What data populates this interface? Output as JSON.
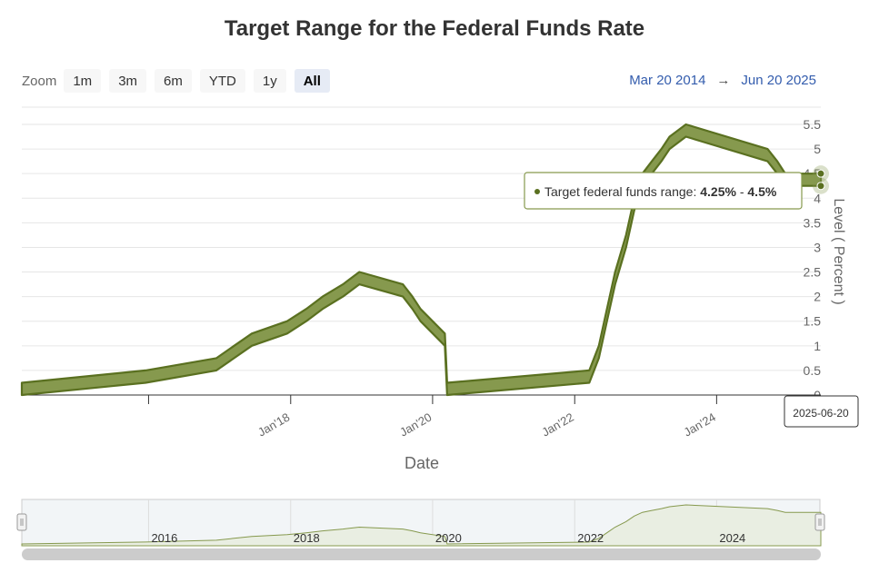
{
  "title": "Target Range for the Federal Funds Rate",
  "zoom": {
    "label": "Zoom",
    "buttons": [
      {
        "label": "1m",
        "active": false
      },
      {
        "label": "3m",
        "active": false
      },
      {
        "label": "6m",
        "active": false
      },
      {
        "label": "YTD",
        "active": false
      },
      {
        "label": "1y",
        "active": false
      },
      {
        "label": "All",
        "active": true
      }
    ]
  },
  "range": {
    "from": "Mar 20 2014",
    "arrow": "→",
    "to": "Jun 20 2025"
  },
  "tooltip": {
    "label": "Target federal funds range: ",
    "low": "4.25%",
    "sep": " - ",
    "high": "4.5%"
  },
  "x_tooltip": "2025-06-20",
  "navigator": {
    "labels": [
      {
        "text": "2016",
        "date": "2016-01-01"
      },
      {
        "text": "2018",
        "date": "2018-01-01"
      },
      {
        "text": "2020",
        "date": "2020-01-01"
      },
      {
        "text": "2022",
        "date": "2022-01-01"
      },
      {
        "text": "2024",
        "date": "2024-01-01"
      }
    ]
  },
  "colors": {
    "series_fill": "#86994e",
    "series_line": "#5a7020",
    "link": "#335cad"
  },
  "chart_data": {
    "type": "area",
    "subtype": "arearange",
    "title": "Target Range for the Federal Funds Rate",
    "xlabel": "Date",
    "ylabel": "Level ( Percent )",
    "x_range": [
      "2014-03-20",
      "2025-06-20"
    ],
    "ylim": [
      0,
      5.5
    ],
    "yticks": [
      "0",
      "0.5",
      "1",
      "1.5",
      "2",
      "2.5",
      "3",
      "3.5",
      "4",
      "4.5",
      "5",
      "5.5"
    ],
    "yaxis_position": "right",
    "xticks": [
      {
        "label": "Jan'18",
        "date": "2018-01-01"
      },
      {
        "label": "Jan'20",
        "date": "2020-01-01"
      },
      {
        "label": "Jan'22",
        "date": "2022-01-01"
      },
      {
        "label": "Jan'24",
        "date": "2024-01-01"
      }
    ],
    "minor_xticks": [
      "2016-01-01"
    ],
    "grid": true,
    "series": [
      {
        "name": "Target federal funds range",
        "points": [
          {
            "date": "2014-03-20",
            "low": 0,
            "high": 0.25
          },
          {
            "date": "2015-12-17",
            "low": 0.25,
            "high": 0.5
          },
          {
            "date": "2016-12-15",
            "low": 0.5,
            "high": 0.75
          },
          {
            "date": "2017-03-16",
            "low": 0.75,
            "high": 1.0
          },
          {
            "date": "2017-06-15",
            "low": 1.0,
            "high": 1.25
          },
          {
            "date": "2017-12-14",
            "low": 1.25,
            "high": 1.5
          },
          {
            "date": "2018-03-22",
            "low": 1.5,
            "high": 1.75
          },
          {
            "date": "2018-06-14",
            "low": 1.75,
            "high": 2.0
          },
          {
            "date": "2018-09-27",
            "low": 2.0,
            "high": 2.25
          },
          {
            "date": "2018-12-20",
            "low": 2.25,
            "high": 2.5
          },
          {
            "date": "2019-08-01",
            "low": 2.0,
            "high": 2.25
          },
          {
            "date": "2019-09-19",
            "low": 1.75,
            "high": 2.0
          },
          {
            "date": "2019-10-31",
            "low": 1.5,
            "high": 1.75
          },
          {
            "date": "2020-03-04",
            "low": 1.0,
            "high": 1.25
          },
          {
            "date": "2020-03-16",
            "low": 0,
            "high": 0.25
          },
          {
            "date": "2022-03-17",
            "low": 0.25,
            "high": 0.5
          },
          {
            "date": "2022-05-05",
            "low": 0.75,
            "high": 1.0
          },
          {
            "date": "2022-06-16",
            "low": 1.5,
            "high": 1.75
          },
          {
            "date": "2022-07-28",
            "low": 2.25,
            "high": 2.5
          },
          {
            "date": "2022-09-22",
            "low": 3.0,
            "high": 3.25
          },
          {
            "date": "2022-11-03",
            "low": 3.75,
            "high": 4.0
          },
          {
            "date": "2022-12-15",
            "low": 4.25,
            "high": 4.5
          },
          {
            "date": "2023-02-02",
            "low": 4.5,
            "high": 4.75
          },
          {
            "date": "2023-03-23",
            "low": 4.75,
            "high": 5.0
          },
          {
            "date": "2023-05-04",
            "low": 5.0,
            "high": 5.25
          },
          {
            "date": "2023-07-27",
            "low": 5.25,
            "high": 5.5
          },
          {
            "date": "2024-09-19",
            "low": 4.75,
            "high": 5.0
          },
          {
            "date": "2024-11-08",
            "low": 4.5,
            "high": 4.75
          },
          {
            "date": "2024-12-19",
            "low": 4.25,
            "high": 4.5
          },
          {
            "date": "2025-06-20",
            "low": 4.25,
            "high": 4.5
          }
        ]
      }
    ]
  }
}
